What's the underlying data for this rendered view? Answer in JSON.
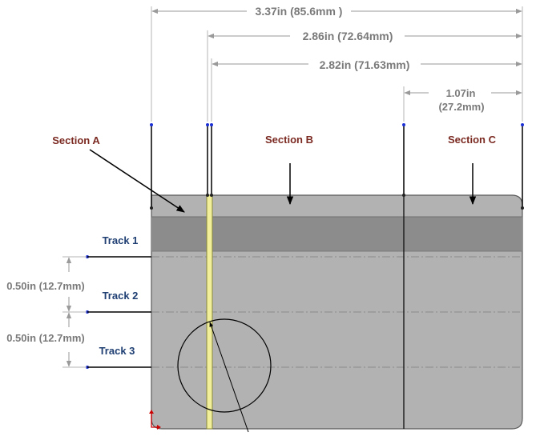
{
  "colors": {
    "card_fill": "#b2b2b2",
    "card_stroke": "#5a5a5a",
    "stripe_fill": "#8c8c8c",
    "highlight_fill": "#f2ef9a",
    "highlight_stroke": "#8a8a3a",
    "dimension_line": "#9a9a9a",
    "dimension_text": "#7a7a7a",
    "section_label": "#7b2a22",
    "track_label": "#1f3f73",
    "point_marker": "#1b2fd6",
    "leader_line": "#000000",
    "origin_marker": "#cc0000"
  },
  "dimensions": {
    "overall_width": "3.37in (85.6mm )",
    "width_from_highlight_left": "2.86in (72.64mm)",
    "width_from_highlight_right": "2.82in (71.63mm)",
    "section_c_width_line1": "1.07in",
    "section_c_width_line2": "(27.2mm)",
    "track_spacing_1": "0.50in (12.7mm)",
    "track_spacing_2": "0.50in (12.7mm)"
  },
  "sections": {
    "a": "Section A",
    "b": "Section B",
    "c": "Section C"
  },
  "tracks": {
    "t1": "Track 1",
    "t2": "Track 2",
    "t3": "Track 3"
  }
}
